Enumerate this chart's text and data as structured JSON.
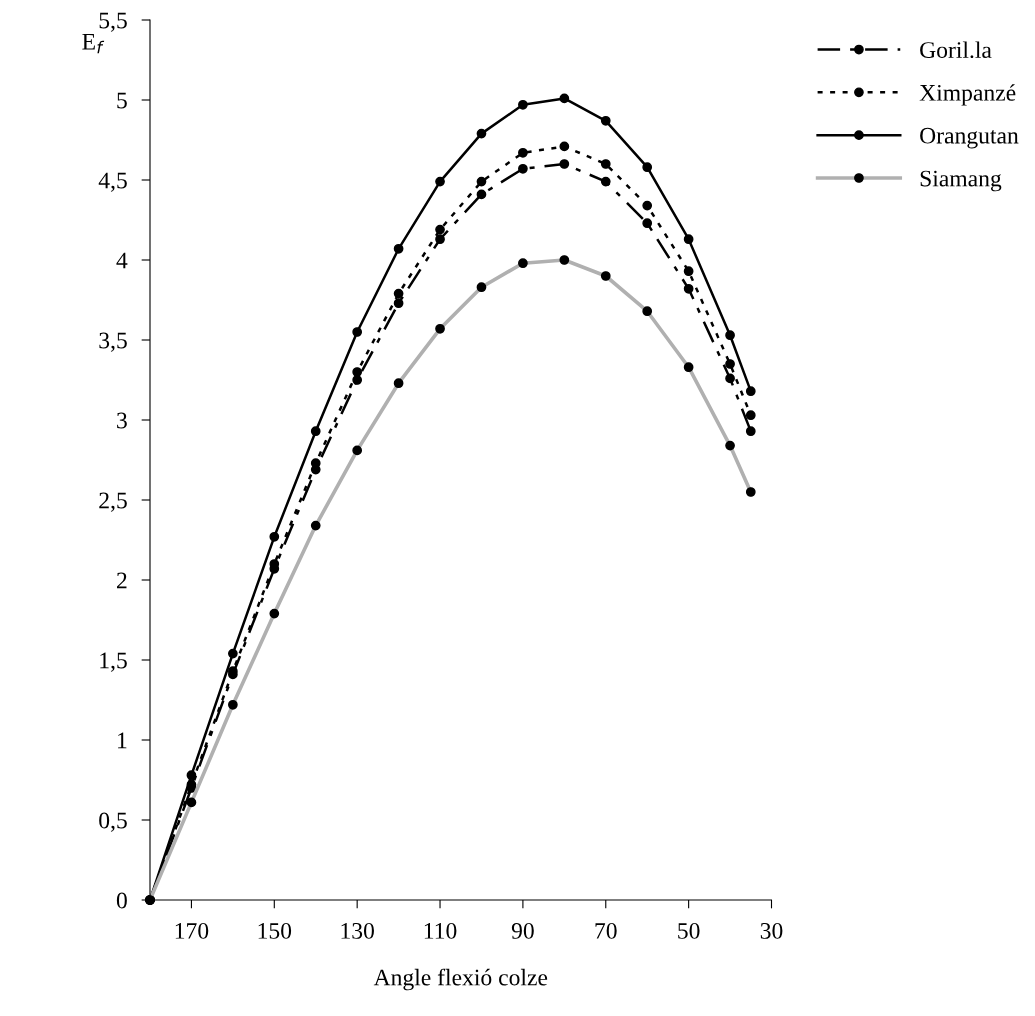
{
  "chart_data": {
    "type": "line",
    "xlabel": "Angle flexió colze",
    "ylabel": "E$_{f}$",
    "x": [
      180,
      170,
      160,
      150,
      140,
      130,
      120,
      110,
      100,
      90,
      80,
      70,
      60,
      50,
      40,
      35
    ],
    "xlim": [
      180,
      30
    ],
    "xticks": [
      170,
      150,
      130,
      110,
      90,
      70,
      50,
      30
    ],
    "ylim": [
      0,
      5.5
    ],
    "yticks": [
      {
        "value": 0,
        "label": "0"
      },
      {
        "value": 0.5,
        "label": "0,5"
      },
      {
        "value": 1,
        "label": "1"
      },
      {
        "value": 1.5,
        "label": "1,5"
      },
      {
        "value": 2,
        "label": "2"
      },
      {
        "value": 2.5,
        "label": "2,5"
      },
      {
        "value": 3,
        "label": "3"
      },
      {
        "value": 3.5,
        "label": "3,5"
      },
      {
        "value": 4,
        "label": "4"
      },
      {
        "value": 4.5,
        "label": "4,5"
      },
      {
        "value": 5,
        "label": "5"
      },
      {
        "value": 5.5,
        "label": "5,5"
      }
    ],
    "grid": false,
    "legend": "top right",
    "marker": "circle",
    "series": [
      {
        "name": "Goril.la",
        "color": "#000000",
        "line_style": "dashdot",
        "values": [
          0,
          0.7,
          1.41,
          2.07,
          2.69,
          3.25,
          3.73,
          4.13,
          4.41,
          4.57,
          4.6,
          4.49,
          4.23,
          3.82,
          3.26,
          2.93
        ]
      },
      {
        "name": "Ximpanzé",
        "color": "#000000",
        "line_style": "dotted",
        "values": [
          0,
          0.72,
          1.43,
          2.1,
          2.73,
          3.3,
          3.79,
          4.19,
          4.49,
          4.67,
          4.71,
          4.6,
          4.34,
          3.93,
          3.35,
          3.03
        ]
      },
      {
        "name": "Orangutan",
        "color": "#000000",
        "line_style": "solid",
        "values": [
          0,
          0.78,
          1.54,
          2.27,
          2.93,
          3.55,
          4.07,
          4.49,
          4.79,
          4.97,
          5.01,
          4.87,
          4.58,
          4.13,
          3.53,
          3.18
        ]
      },
      {
        "name": "Siamang",
        "color": "#b0b0b0",
        "line_style": "solid",
        "values": [
          0,
          0.61,
          1.22,
          1.79,
          2.34,
          2.81,
          3.23,
          3.57,
          3.83,
          3.98,
          4.0,
          3.9,
          3.68,
          3.33,
          2.84,
          2.55
        ]
      }
    ]
  }
}
